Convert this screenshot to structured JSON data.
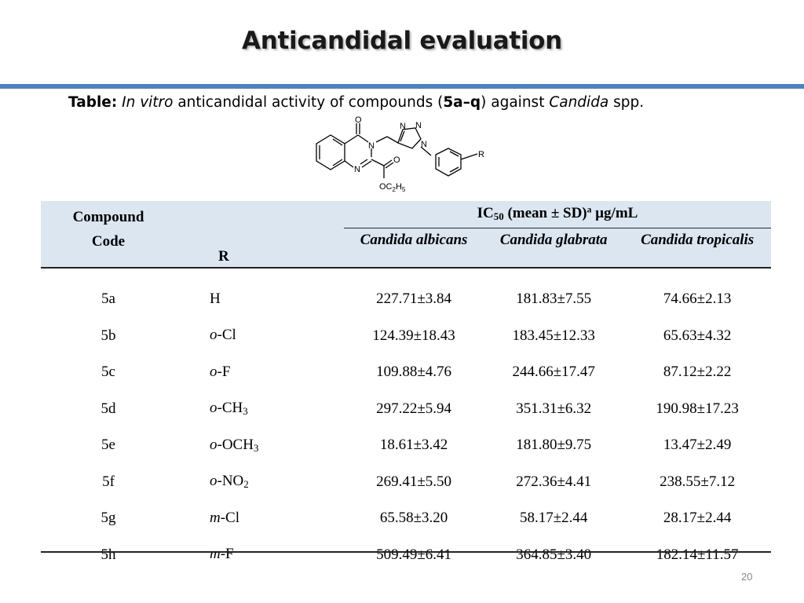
{
  "slide": {
    "title": "Anticandidal evaluation",
    "page_number": "20",
    "accent_color": "#4f81bd",
    "header_bg_color": "#dbe6f1"
  },
  "caption": {
    "label": "Table:",
    "italic_1": "In vitro",
    "text_1": " anticandidal activity of compounds (",
    "compounds": "5a–q",
    "text_2": ") against ",
    "italic_2": "Candida",
    "text_3": " spp."
  },
  "structure": {
    "atom_o_top": "O",
    "atom_n1": "N",
    "atom_n2": "N",
    "atom_o_ester": "O",
    "atom_tri_n1": "N",
    "atom_tri_n2": "N",
    "atom_tri_n3": "N",
    "atom_r": "R",
    "ethoxy": "OC",
    "ethoxy_sub1": "2",
    "ethoxy_h": "H",
    "ethoxy_sub2": "5"
  },
  "table": {
    "header": {
      "compound_line1": "Compound",
      "compound_line2": "Code",
      "r": "R",
      "ic_prefix": "IC",
      "ic_sub": "50",
      "ic_mid": " (mean ± SD)",
      "ic_sup": "a",
      "ic_unit": " µg/mL",
      "species": [
        "Candida albicans",
        "Candida  glabrata",
        "Candida tropicalis"
      ]
    },
    "rows": [
      {
        "code": "5a",
        "r_prefix": "",
        "r_main": "H",
        "r_sub": "",
        "values": [
          "227.71±3.84",
          "181.83±7.55",
          "74.66±2.13"
        ],
        "bold": [
          false,
          false,
          true
        ]
      },
      {
        "code": "5b",
        "r_prefix": "o",
        "r_main": "-Cl",
        "r_sub": "",
        "values": [
          "124.39±18.43",
          "183.45±12.33",
          "65.63±4.32"
        ],
        "bold": [
          false,
          false,
          true
        ]
      },
      {
        "code": "5c",
        "r_prefix": "o",
        "r_main": "-F",
        "r_sub": "",
        "values": [
          "109.88±4.76",
          "244.66±17.47",
          "87.12±2.22"
        ],
        "bold": [
          false,
          false,
          true
        ]
      },
      {
        "code": "5d",
        "r_prefix": "o",
        "r_main": "-CH",
        "r_sub": "3",
        "values": [
          "297.22±5.94",
          "351.31±6.32",
          "190.98±17.23"
        ],
        "bold": [
          false,
          false,
          false
        ]
      },
      {
        "code": "5e",
        "r_prefix": "o",
        "r_main": "-OCH",
        "r_sub": "3",
        "values": [
          "18.61±3.42",
          "181.80±9.75",
          "13.47±2.49"
        ],
        "bold": [
          true,
          false,
          true
        ]
      },
      {
        "code": "5f",
        "r_prefix": "o",
        "r_main": "-NO",
        "r_sub": "2",
        "values": [
          "269.41±5.50",
          "272.36±4.41",
          "238.55±7.12"
        ],
        "bold": [
          false,
          false,
          false
        ]
      },
      {
        "code": "5g",
        "r_prefix": "m",
        "r_main": "-Cl",
        "r_sub": "",
        "values": [
          "65.58±3.20",
          "58.17±2.44",
          "28.17±2.44"
        ],
        "bold": [
          true,
          true,
          true
        ]
      },
      {
        "code": "5h",
        "r_prefix": "m",
        "r_main": "-F",
        "r_sub": "",
        "values": [
          "509.49±6.41",
          "364.85±3.40",
          "182.14±11.57"
        ],
        "bold": [
          false,
          false,
          false
        ]
      }
    ]
  }
}
